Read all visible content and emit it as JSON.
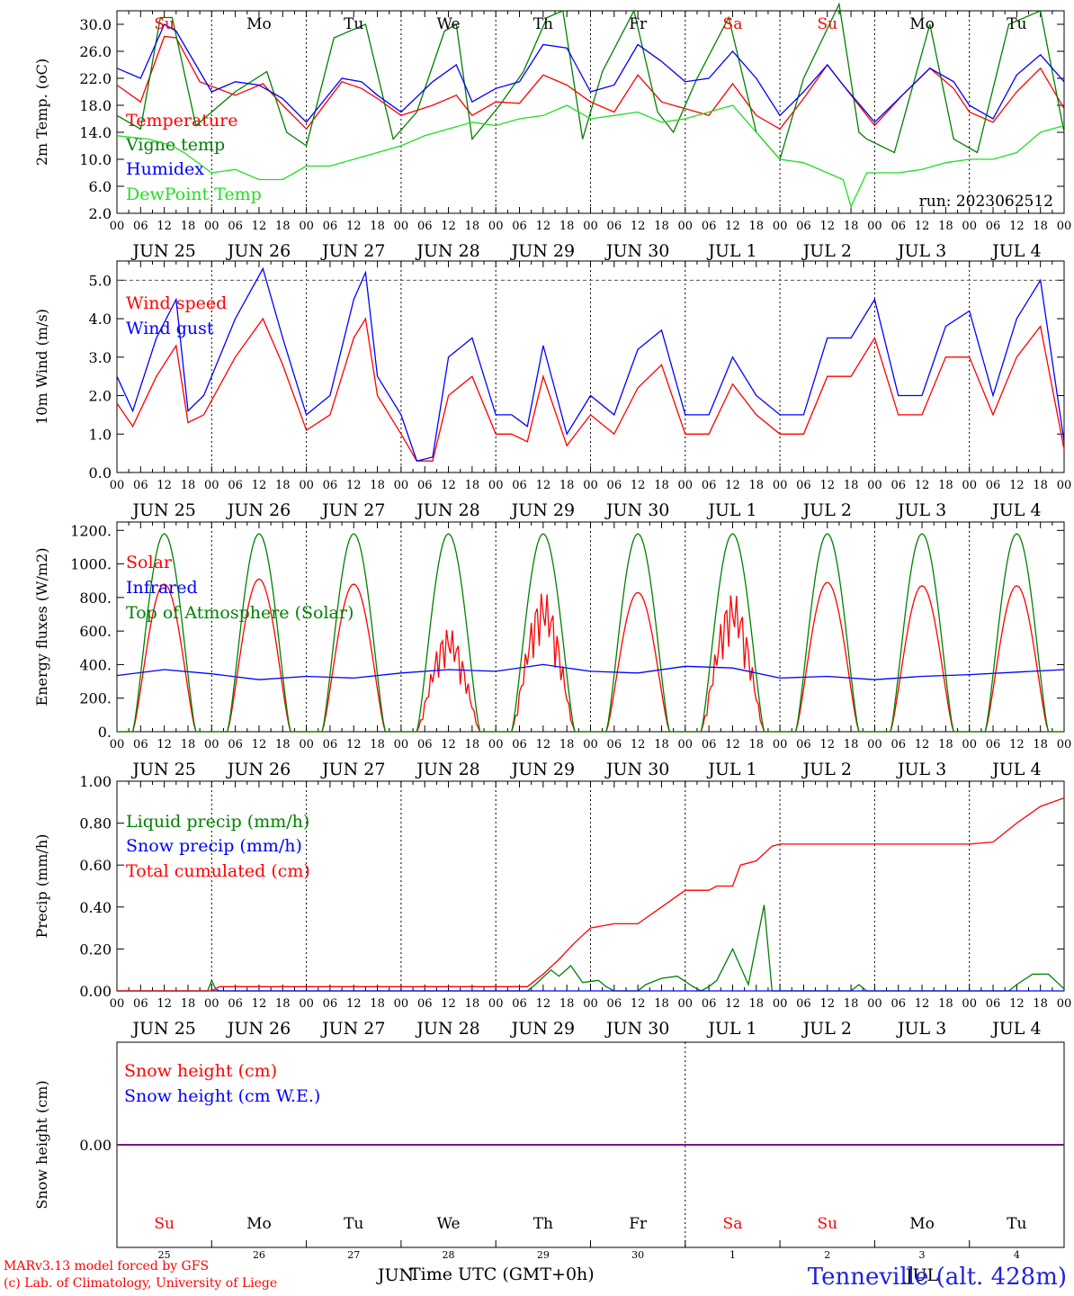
{
  "run_label": "run: 2023062512",
  "colors": {
    "red": "#ff0000",
    "green": "#008000",
    "blue": "#0000ff",
    "lightgreen": "#22dd22",
    "purple": "#800080",
    "black": "#000000"
  },
  "days": [
    "Su",
    "Mo",
    "Tu",
    "We",
    "Th",
    "Fr",
    "Sa",
    "Su",
    "Mo",
    "Tu"
  ],
  "day_colors": [
    "#ff0000",
    "#000000",
    "#000000",
    "#000000",
    "#000000",
    "#000000",
    "#ff0000",
    "#ff0000",
    "#000000",
    "#000000"
  ],
  "date_labels": [
    "JUN 25",
    "JUN 26",
    "JUN 27",
    "JUN 28",
    "JUN 29",
    "JUN 30",
    "JUL  1",
    "JUL  2",
    "JUL  3",
    "JUL  4"
  ],
  "hour_labels": [
    "00",
    "06",
    "12",
    "18"
  ],
  "day_numbers": [
    "25",
    "26",
    "27",
    "28",
    "29",
    "30",
    "1",
    "2",
    "3",
    "4"
  ],
  "month_labels": [
    "JUN",
    "JUL"
  ],
  "x_title": "Time UTC (GMT+0h)",
  "credits": [
    "MARv3.13 model forced by GFS",
    "(c) Lab. of Climatology, University of Liege"
  ],
  "station": "Tenneville (alt. 428m)",
  "chart_data": [
    {
      "type": "line",
      "ylabel": "2m Temp. (oC)",
      "ylim": [
        2,
        32
      ],
      "yticks": [
        2.0,
        6.0,
        10.0,
        14.0,
        18.0,
        22.0,
        26.0,
        30.0
      ],
      "tick_decimals": 1,
      "x_unit": "hours since 2023-06-25 00 UTC",
      "series": [
        {
          "name": "Temperature",
          "color": "#ff0000",
          "x": [
            0,
            6,
            12,
            15,
            21,
            30,
            37,
            42,
            48,
            57,
            62,
            66,
            72,
            80,
            86,
            90,
            96,
            102,
            108,
            114,
            120,
            126,
            132,
            138,
            144,
            150,
            156,
            162,
            168,
            174,
            180,
            184,
            192,
            199,
            206,
            212,
            216,
            222,
            228,
            234,
            240
          ],
          "y": [
            21,
            18.5,
            28.2,
            28,
            21.5,
            19.5,
            21.2,
            18,
            14.5,
            21.5,
            20.5,
            19,
            16.5,
            18,
            19.5,
            16.5,
            18.5,
            18.3,
            22.5,
            21,
            18.5,
            17,
            22.5,
            18.5,
            17.5,
            16.5,
            21.2,
            16.5,
            14.5,
            19,
            24,
            21,
            15,
            19.5,
            23.5,
            20.5,
            17,
            15.5,
            20,
            23.5,
            17.5
          ]
        },
        {
          "name": "Vigne temp",
          "color": "#008000",
          "x": [
            0,
            6,
            11,
            14,
            20,
            30,
            38,
            43,
            48,
            55,
            63,
            70,
            76,
            83,
            86,
            90,
            97,
            103,
            109,
            113,
            118,
            123,
            131,
            137,
            141,
            147,
            155,
            162,
            168,
            174,
            183,
            188,
            190,
            197,
            206,
            212,
            218,
            226,
            234,
            240
          ],
          "y": [
            16.5,
            14.5,
            31,
            31,
            15,
            20,
            23,
            14,
            12,
            28,
            30,
            13,
            17,
            29,
            30,
            13,
            18,
            23,
            31,
            32,
            13,
            23,
            32,
            17,
            14,
            22,
            31,
            14,
            10,
            22,
            33,
            14,
            13,
            11,
            30,
            13,
            11,
            30,
            32,
            14
          ]
        },
        {
          "name": "Humidex",
          "color": "#0000ff",
          "x": [
            0,
            6,
            12,
            15,
            24,
            30,
            36,
            42,
            48,
            57,
            62,
            66,
            72,
            80,
            86,
            90,
            96,
            102,
            108,
            114,
            120,
            126,
            132,
            138,
            144,
            150,
            156,
            162,
            168,
            174,
            180,
            184,
            192,
            199,
            206,
            212,
            216,
            222,
            228,
            234,
            240
          ],
          "y": [
            23.5,
            22,
            30,
            29,
            20,
            21.5,
            21,
            19,
            15.5,
            22,
            21.5,
            19.5,
            17,
            21.5,
            24,
            18.5,
            20.5,
            21.5,
            27,
            26.5,
            20,
            21,
            27,
            24.5,
            21.5,
            22,
            26,
            22,
            16.5,
            20,
            24,
            21,
            15.5,
            19.5,
            23.5,
            21.5,
            18,
            16,
            22.5,
            25.5,
            21.5
          ]
        },
        {
          "name": "DewPoint Temp",
          "color": "#22dd22",
          "x": [
            0,
            8,
            14,
            17,
            24,
            30,
            36,
            42,
            48,
            54,
            60,
            66,
            72,
            78,
            84,
            90,
            96,
            102,
            108,
            114,
            120,
            126,
            132,
            138,
            144,
            150,
            156,
            162,
            168,
            174,
            180,
            184,
            186,
            190,
            198,
            204,
            210,
            216,
            222,
            228,
            234,
            240
          ],
          "y": [
            13.5,
            13,
            12,
            11,
            8,
            8.5,
            7,
            7,
            9,
            9,
            10,
            11,
            12,
            13.5,
            14.5,
            15.5,
            15,
            16,
            16.5,
            18,
            16,
            16.5,
            17,
            15.5,
            16,
            17,
            18,
            14,
            10,
            9.5,
            8,
            7,
            3,
            8,
            8,
            8.5,
            9.5,
            10,
            10,
            11,
            14,
            15
          ]
        }
      ]
    },
    {
      "type": "line",
      "ylabel": "10m Wind (m/s)",
      "ylim": [
        0,
        5.5
      ],
      "yticks": [
        0.0,
        1.0,
        2.0,
        3.0,
        4.0,
        5.0
      ],
      "tick_decimals": 1,
      "x_unit": "hours since 2023-06-25 00 UTC",
      "series": [
        {
          "name": "Wind speed",
          "color": "#ff0000",
          "x": [
            0,
            4,
            10,
            15,
            18,
            22,
            30,
            37,
            42,
            48,
            54,
            60,
            63,
            66,
            72,
            76,
            80,
            84,
            90,
            96,
            100,
            104,
            108,
            114,
            120,
            126,
            132,
            138,
            144,
            150,
            156,
            162,
            168,
            174,
            180,
            186,
            192,
            198,
            204,
            210,
            216,
            222,
            228,
            234,
            240
          ],
          "y": [
            1.8,
            1.2,
            2.5,
            3.3,
            1.3,
            1.5,
            3,
            4,
            2.8,
            1.1,
            1.5,
            3.5,
            4,
            2,
            1,
            0.3,
            0.3,
            2,
            2.5,
            1,
            1,
            0.8,
            2.5,
            0.7,
            1.5,
            1,
            2.2,
            2.8,
            1,
            1,
            2.3,
            1.5,
            1,
            1,
            2.5,
            2.5,
            3.5,
            1.5,
            1.5,
            3,
            3,
            1.5,
            3,
            3.8,
            0.6
          ]
        },
        {
          "name": "Wind gust",
          "color": "#0000ff",
          "x": [
            0,
            4,
            10,
            15,
            18,
            22,
            30,
            37,
            42,
            48,
            54,
            60,
            63,
            66,
            72,
            76,
            80,
            84,
            90,
            96,
            100,
            104,
            108,
            114,
            120,
            126,
            132,
            138,
            144,
            150,
            156,
            162,
            168,
            174,
            180,
            186,
            192,
            198,
            204,
            210,
            216,
            222,
            228,
            234,
            240
          ],
          "y": [
            2.5,
            1.6,
            3.5,
            4.5,
            1.6,
            2,
            4,
            5.3,
            3.5,
            1.5,
            2,
            4.5,
            5.2,
            2.5,
            1.5,
            0.3,
            0.4,
            3,
            3.5,
            1.5,
            1.5,
            1.2,
            3.3,
            1,
            2,
            1.5,
            3.2,
            3.7,
            1.5,
            1.5,
            3,
            2,
            1.5,
            1.5,
            3.5,
            3.5,
            4.5,
            2,
            2,
            3.8,
            4.2,
            2,
            4,
            5,
            0.8
          ]
        }
      ]
    },
    {
      "type": "line",
      "ylabel": "Energy fluxes (W/m2)",
      "ylim": [
        0,
        1250
      ],
      "yticks": [
        0,
        200,
        400,
        600,
        800,
        1000,
        1200
      ],
      "tick_decimals": 0,
      "x_unit": "hours since 2023-06-25 00 UTC",
      "daylight_hours": [
        4,
        20
      ],
      "toa_peak": 1180,
      "series": [
        {
          "name": "Solar",
          "color": "#ff0000",
          "daily_peaks": [
            880,
            910,
            880,
            620,
            840,
            830,
            830,
            890,
            870,
            870
          ]
        },
        {
          "name": "Infrared",
          "color": "#0000ff",
          "x": [
            0,
            12,
            24,
            36,
            48,
            60,
            72,
            84,
            96,
            108,
            120,
            132,
            144,
            156,
            168,
            180,
            192,
            204,
            216,
            228,
            240
          ],
          "y": [
            335,
            370,
            345,
            310,
            330,
            320,
            350,
            370,
            360,
            400,
            360,
            350,
            390,
            380,
            320,
            330,
            310,
            330,
            340,
            355,
            370
          ]
        },
        {
          "name": "Top of Atmosphere (Solar)",
          "color": "#008000",
          "daily_peaks": [
            1180,
            1180,
            1180,
            1180,
            1180,
            1180,
            1180,
            1180,
            1180,
            1180
          ]
        }
      ]
    },
    {
      "type": "line",
      "ylabel": "Precip (mm/h)",
      "ylim": [
        0,
        1.0
      ],
      "yticks": [
        0.0,
        0.2,
        0.4,
        0.6,
        0.8,
        1.0
      ],
      "tick_decimals": 2,
      "x_unit": "hours since 2023-06-25 00 UTC",
      "series": [
        {
          "name": "Liquid precip (mm/h)",
          "color": "#008000",
          "x": [
            0,
            23,
            24,
            25,
            26,
            104,
            106,
            110,
            112,
            115,
            118,
            122,
            124,
            126,
            132,
            134,
            138,
            142,
            146,
            148,
            150,
            152,
            156,
            160,
            164,
            166,
            168,
            170,
            184,
            186,
            188,
            190,
            226,
            228,
            232,
            236,
            240
          ],
          "y": [
            0,
            0,
            0.05,
            0.01,
            0,
            0,
            0.03,
            0.1,
            0.07,
            0.12,
            0.04,
            0.05,
            0.02,
            0,
            0,
            0.03,
            0.06,
            0.07,
            0.02,
            0,
            0.02,
            0.05,
            0.2,
            0.03,
            0.41,
            0,
            0,
            0,
            0,
            0,
            0.03,
            0,
            0,
            0.03,
            0.08,
            0.08,
            0.01
          ]
        },
        {
          "name": "Snow precip (mm/h)",
          "color": "#0000ff",
          "x": [
            0,
            240
          ],
          "y": [
            0,
            0
          ]
        },
        {
          "name": "Total cumulated (cm)",
          "color": "#ff0000",
          "x": [
            0,
            24,
            26,
            100,
            104,
            108,
            112,
            116,
            120,
            126,
            132,
            138,
            144,
            150,
            152,
            156,
            158,
            162,
            166,
            168,
            216,
            222,
            228,
            234,
            240
          ],
          "y": [
            0,
            0,
            0.02,
            0.02,
            0.02,
            0.08,
            0.15,
            0.23,
            0.3,
            0.32,
            0.32,
            0.4,
            0.48,
            0.48,
            0.5,
            0.5,
            0.6,
            0.62,
            0.69,
            0.7,
            0.7,
            0.71,
            0.8,
            0.88,
            0.92
          ]
        }
      ]
    },
    {
      "type": "line",
      "ylabel": "Snow height (cm)",
      "ylim": [
        -1,
        1
      ],
      "yticks": [
        0.0
      ],
      "tick_decimals": 2,
      "x_unit": "hours since 2023-06-25 00 UTC",
      "series": [
        {
          "name": "Snow height (cm)",
          "color": "#ff0000",
          "x": [
            0,
            240
          ],
          "y": [
            0,
            0
          ]
        },
        {
          "name": "Snow height (cm W.E.)",
          "color": "#0000ff",
          "x": [
            0,
            240
          ],
          "y": [
            0,
            0
          ]
        }
      ]
    }
  ]
}
